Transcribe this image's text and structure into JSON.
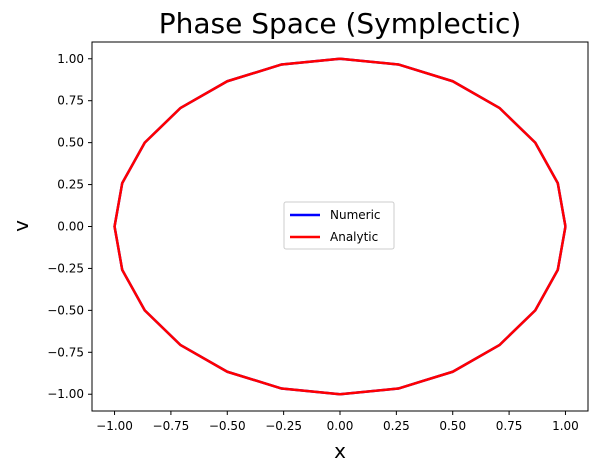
{
  "chart_data": {
    "type": "line",
    "title": "Phase Space  (Symplectic)",
    "xlabel": "x",
    "ylabel": "v",
    "xlim": [
      -1.1,
      1.1
    ],
    "ylim": [
      -1.1,
      1.1
    ],
    "xticks": [
      -1.0,
      -0.75,
      -0.5,
      -0.25,
      0.0,
      0.25,
      0.5,
      0.75,
      1.0
    ],
    "xtick_labels": [
      "−1.00",
      "−0.75",
      "−0.50",
      "−0.25",
      "0.00",
      "0.25",
      "0.50",
      "0.75",
      "1.00"
    ],
    "yticks": [
      1.0,
      0.75,
      0.5,
      0.25,
      0.0,
      -0.25,
      -0.5,
      -0.75,
      -1.0
    ],
    "ytick_labels": [
      "1.00",
      "0.75",
      "0.50",
      "0.25",
      "0.00",
      "−0.25",
      "−0.50",
      "−0.75",
      "−1.00"
    ],
    "grid": false,
    "legend_position": "center",
    "series": [
      {
        "name": "Numeric",
        "color": "#0000ff",
        "x": [
          1.0,
          0.9659,
          0.866,
          0.7071,
          0.5,
          0.2588,
          0.0,
          -0.2588,
          -0.5,
          -0.7071,
          -0.866,
          -0.9659,
          -1.0,
          -0.9659,
          -0.866,
          -0.7071,
          -0.5,
          -0.2588,
          0.0,
          0.2588,
          0.5,
          0.7071,
          0.866,
          0.9659,
          1.0
        ],
        "y": [
          0.0,
          0.2588,
          0.5,
          0.7071,
          0.866,
          0.9659,
          1.0,
          0.9659,
          0.866,
          0.7071,
          0.5,
          0.2588,
          0.0,
          -0.2588,
          -0.5,
          -0.7071,
          -0.866,
          -0.9659,
          -1.0,
          -0.9659,
          -0.866,
          -0.7071,
          -0.5,
          -0.2588,
          0.0
        ]
      },
      {
        "name": "Analytic",
        "color": "#ff0000",
        "x": [
          1.0,
          0.9659,
          0.866,
          0.7071,
          0.5,
          0.2588,
          0.0,
          -0.2588,
          -0.5,
          -0.7071,
          -0.866,
          -0.9659,
          -1.0,
          -0.9659,
          -0.866,
          -0.7071,
          -0.5,
          -0.2588,
          0.0,
          0.2588,
          0.5,
          0.7071,
          0.866,
          0.9659,
          1.0
        ],
        "y": [
          0.0,
          0.2588,
          0.5,
          0.7071,
          0.866,
          0.9659,
          1.0,
          0.9659,
          0.866,
          0.7071,
          0.5,
          0.2588,
          0.0,
          -0.2588,
          -0.5,
          -0.7071,
          -0.866,
          -0.9659,
          -1.0,
          -0.9659,
          -0.866,
          -0.7071,
          -0.5,
          -0.2588,
          0.0
        ]
      }
    ]
  }
}
